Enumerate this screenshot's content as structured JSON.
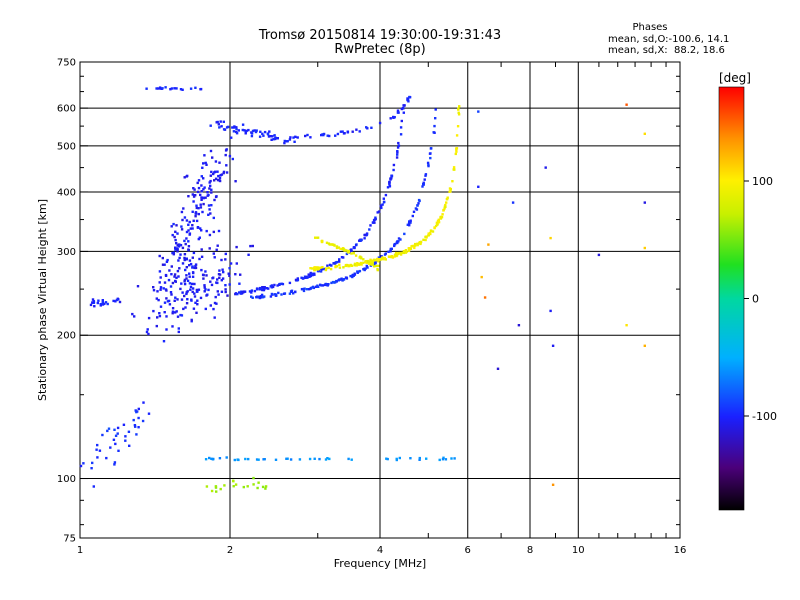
{
  "header": {
    "title_line1": "Tromsø 20150814 19:30:00-19:31:43",
    "title_line2": "RwPretec (8p)",
    "phase_title": "Phases",
    "phase_o": "mean, sd,O:-100.6, 14.1",
    "phase_x": "mean, sd,X:  88.2, 18.6"
  },
  "colorbar": {
    "label": "[deg]",
    "ticks": [
      "100",
      "0",
      "-100"
    ],
    "tick_values": [
      100,
      0,
      -100
    ],
    "range": [
      -180,
      180
    ]
  },
  "chart_data": {
    "type": "scatter",
    "title": "Tromsø 20150814 19:30:00-19:31:43",
    "subtitle": "RwPretec (8p)",
    "xlabel": "Frequency [MHz]",
    "ylabel": "Stationary phase Virtual Height [km]",
    "x_scale": "log",
    "y_scale": "log",
    "xlim": [
      1,
      16
    ],
    "ylim": [
      75,
      750
    ],
    "x_ticks": [
      "1",
      "2",
      "4",
      "6",
      "8",
      "10",
      "16"
    ],
    "x_tick_values": [
      1,
      2,
      4,
      6,
      8,
      10,
      16
    ],
    "x_minor_ticks": [
      3,
      5,
      7,
      9,
      11,
      12,
      13,
      14,
      15
    ],
    "y_ticks": [
      "75",
      "100",
      "200",
      "300",
      "400",
      "500",
      "600",
      "750"
    ],
    "y_tick_values": [
      75,
      100,
      200,
      300,
      400,
      500,
      600,
      750
    ],
    "grid": true,
    "colors": {
      "o_mode": "#1a2cf0",
      "x_mode": "#e6ea1e"
    },
    "series": [
      {
        "segments": [
          {
            "from": [
              1.45,
              225
            ],
            "to": [
              2.0,
              275
            ],
            "density": 160,
            "spread": [
              0.18,
              0.22
            ],
            "phase": -105
          },
          {
            "from": [
              1.45,
              240
            ],
            "to": [
              1.9,
              470
            ],
            "density": 200,
            "spread": [
              0.12,
              0.18
            ],
            "phase": -105
          },
          {
            "from": [
              1.05,
              235
            ],
            "to": [
              1.2,
              235
            ],
            "density": 25,
            "spread": [
              0.02,
              0.03
            ],
            "phase": -100
          },
          {
            "from": [
              1.0,
              100
            ],
            "to": [
              1.35,
              140
            ],
            "density": 45,
            "spread": [
              0.08,
              0.1
            ],
            "phase": -95
          },
          {
            "from": [
              1.85,
              560
            ],
            "to": [
              2.7,
              510
            ],
            "density": 60,
            "spread": [
              0.05,
              0.04
            ],
            "phase": -100
          }
        ]
      },
      {
        "arcs": [
          {
            "f0": 2.05,
            "f1": 4.5,
            "h0": 245,
            "h1": 640,
            "fc": 4.85,
            "density": 160,
            "phase": -100
          },
          {
            "f0": 2.2,
            "f1": 5.2,
            "h0": 240,
            "h1": 610,
            "fc": 5.55,
            "density": 160,
            "phase": -95
          },
          {
            "f0": 2.6,
            "f1": 4.6,
            "h0": 520,
            "h1": 640,
            "fc": 4.9,
            "density": 50,
            "phase": -100
          }
        ]
      },
      {
        "arcs": [
          {
            "f0": 2.9,
            "f1": 5.78,
            "h0": 275,
            "h1": 650,
            "fc": 5.9,
            "density": 200,
            "phase": 95
          },
          {
            "f0": 2.95,
            "f1": 4.0,
            "h0": 320,
            "h1": 275,
            "fc": 9.0,
            "density": 50,
            "phase": 90
          }
        ]
      },
      {
        "segments": [
          {
            "from": [
              1.8,
              110
            ],
            "to": [
              5.7,
              110
            ],
            "density": 45,
            "spread": [
              0.01,
              0.01
            ],
            "phase": -60
          },
          {
            "from": [
              1.8,
              95
            ],
            "to": [
              2.5,
              98
            ],
            "density": 20,
            "spread": [
              0.03,
              0.05
            ],
            "phase": 60
          },
          {
            "from": [
              1.35,
              660
            ],
            "to": [
              1.75,
              660
            ],
            "density": 18,
            "spread": [
              0.02,
              0.01
            ],
            "phase": -100
          }
        ]
      }
    ]
  }
}
